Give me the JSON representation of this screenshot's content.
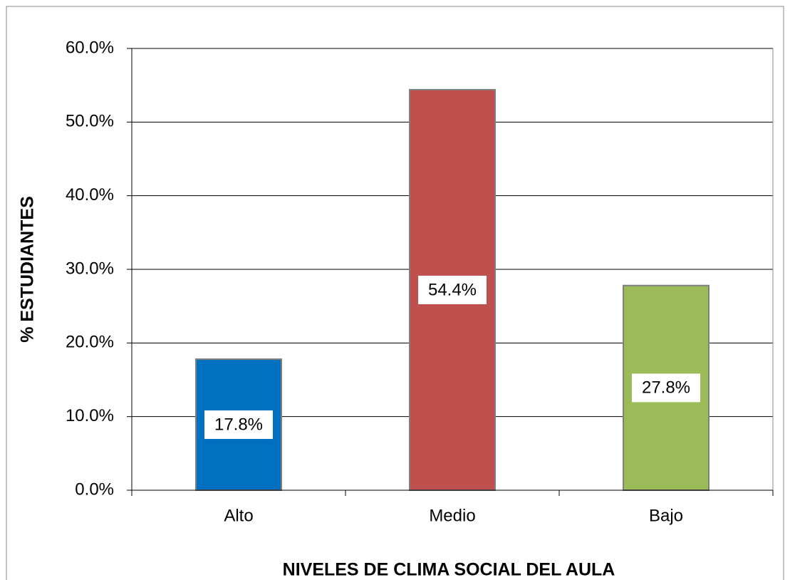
{
  "chart_data": {
    "type": "bar",
    "x_label": "NIVELES DE CLIMA SOCIAL DEL AULA",
    "y_label": "% ESTUDIANTES",
    "categories": [
      "Alto",
      "Medio",
      "Bajo"
    ],
    "values": [
      17.8,
      54.4,
      27.8
    ],
    "value_labels": [
      "17.8%",
      "54.4%",
      "27.8%"
    ],
    "colors": [
      "#0070c0",
      "#c0504d",
      "#9bbb59"
    ],
    "ylim": [
      0,
      60
    ],
    "yticks": [
      {
        "value": 0,
        "label": "0.0%"
      },
      {
        "value": 10,
        "label": "10.0%"
      },
      {
        "value": 20,
        "label": "20.0%"
      },
      {
        "value": 30,
        "label": "30.0%"
      },
      {
        "value": 40,
        "label": "40.0%"
      },
      {
        "value": 50,
        "label": "50.0%"
      },
      {
        "value": 60,
        "label": "60.0%"
      }
    ],
    "grid": true
  }
}
